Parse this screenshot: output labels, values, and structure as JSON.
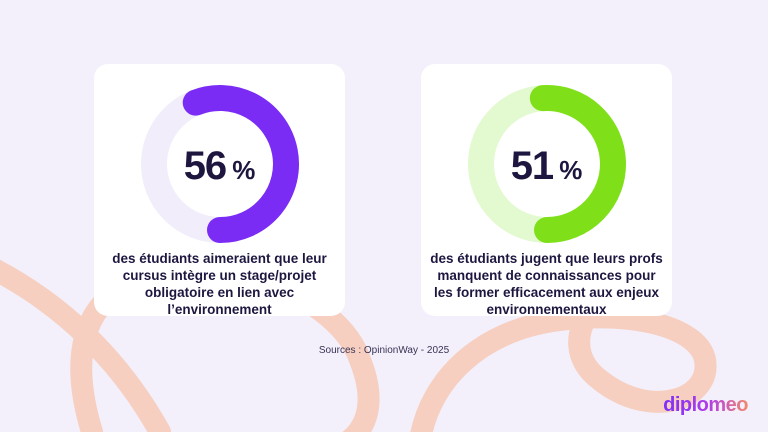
{
  "stats": [
    {
      "value": "56",
      "unit": "%",
      "fraction": 0.56,
      "description": "des étudiants  aimeraient que leur cursus intègre un stage/projet obligatoire en lien avec l’environnement",
      "ring_color": "#7a2cf5",
      "track_color": "#f1edfb"
    },
    {
      "value": "51",
      "unit": "%",
      "fraction": 0.51,
      "description": "des étudiants jugent que leurs profs manquent de connaissances pour les former efficacement aux enjeux environnementaux",
      "ring_color": "#7fe01a",
      "track_color": "#e3f9cf"
    }
  ],
  "source": "Sources : OpinionWay - 2025",
  "logo": "diplomeo",
  "colors": {
    "background": "#f3f0fb",
    "decor_stroke": "#f6cfc0",
    "text": "#1f1640"
  }
}
